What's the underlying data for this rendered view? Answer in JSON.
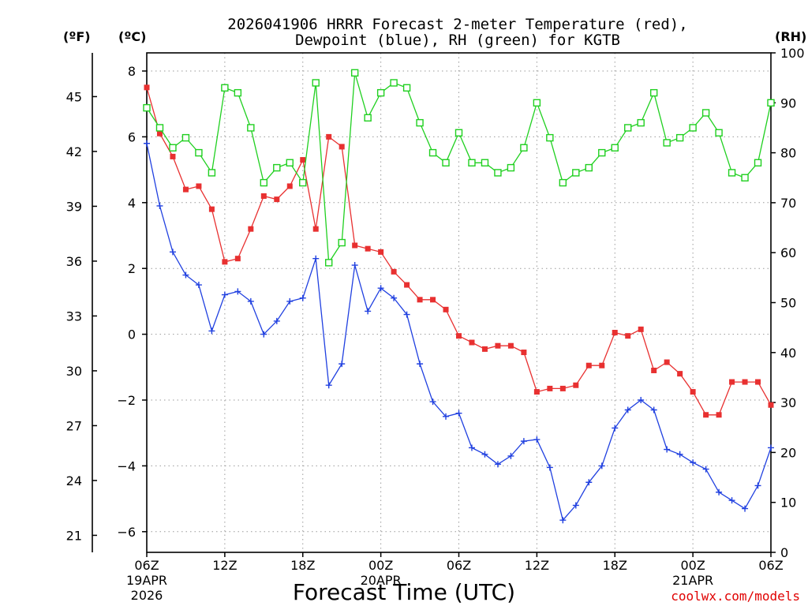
{
  "chart_data": {
    "type": "line",
    "title_line1": "2026041906 HRRR Forecast 2-meter Temperature (red),",
    "title_line2": "Dewpoint (blue), RH (green) for KGTB",
    "xlabel": "Forecast Time (UTC)",
    "credit": "coolwx.com/models",
    "units": {
      "fahrenheit": "(ºF)",
      "celsius": "(ºC)",
      "rh": "(RH)"
    },
    "y_celsius": {
      "range": [
        -6.6,
        8.0
      ],
      "ticks": [
        "8",
        "6",
        "4",
        "2",
        "0",
        "−2",
        "−4",
        "−6"
      ],
      "tick_values": [
        8,
        6,
        4,
        2,
        0,
        -2,
        -4,
        -6
      ]
    },
    "y_fahrenheit": {
      "ticks": [
        "45",
        "42",
        "39",
        "36",
        "33",
        "30",
        "27",
        "24",
        "21"
      ],
      "tick_values": [
        45,
        42,
        39,
        36,
        33,
        30,
        27,
        24,
        21
      ]
    },
    "y_rh": {
      "range": [
        0,
        100
      ],
      "ticks": [
        "100",
        "90",
        "80",
        "70",
        "60",
        "50",
        "40",
        "30",
        "20",
        "10",
        "0"
      ],
      "tick_values": [
        100,
        90,
        80,
        70,
        60,
        50,
        40,
        30,
        20,
        10,
        0
      ]
    },
    "x_hours_range": [
      0,
      48
    ],
    "x_ticks": [
      {
        "hour": 0,
        "lines": [
          "06Z",
          "19APR",
          "2026"
        ]
      },
      {
        "hour": 6,
        "lines": [
          "12Z"
        ]
      },
      {
        "hour": 12,
        "lines": [
          "18Z"
        ]
      },
      {
        "hour": 18,
        "lines": [
          "00Z",
          "20APR"
        ]
      },
      {
        "hour": 24,
        "lines": [
          "06Z"
        ]
      },
      {
        "hour": 30,
        "lines": [
          "12Z"
        ]
      },
      {
        "hour": 36,
        "lines": [
          "18Z"
        ]
      },
      {
        "hour": 42,
        "lines": [
          "00Z",
          "21APR"
        ]
      },
      {
        "hour": 48,
        "lines": [
          "06Z"
        ]
      }
    ],
    "grid": true,
    "series": [
      {
        "name": "Temperature",
        "axis": "celsius",
        "color": "#e83030",
        "marker": "filled-square",
        "values": [
          7.5,
          6.1,
          5.4,
          4.4,
          4.5,
          3.8,
          2.2,
          2.3,
          3.2,
          4.2,
          4.1,
          4.5,
          5.3,
          3.2,
          6.0,
          5.7,
          2.7,
          2.6,
          2.5,
          1.9,
          1.5,
          1.05,
          1.05,
          0.75,
          -0.05,
          -0.25,
          -0.45,
          -0.35,
          -0.35,
          -0.55,
          -1.75,
          -1.65,
          -1.65,
          -1.55,
          -0.95,
          -0.95,
          0.05,
          -0.05,
          0.15,
          -1.1,
          -0.85,
          -1.2,
          -1.75,
          -2.45,
          -2.45,
          -1.45,
          -1.45,
          -1.45,
          -2.15
        ]
      },
      {
        "name": "Dewpoint",
        "axis": "celsius",
        "color": "#2040e0",
        "marker": "plus",
        "values": [
          5.8,
          3.9,
          2.5,
          1.8,
          1.5,
          0.1,
          1.2,
          1.3,
          1.0,
          0.0,
          0.4,
          1.0,
          1.1,
          2.3,
          -1.55,
          -0.9,
          2.1,
          0.7,
          1.4,
          1.1,
          0.6,
          -0.9,
          -2.05,
          -2.5,
          -2.4,
          -3.45,
          -3.65,
          -3.95,
          -3.7,
          -3.25,
          -3.2,
          -4.05,
          -5.65,
          -5.2,
          -4.5,
          -4.0,
          -2.85,
          -2.3,
          -2.0,
          -2.3,
          -3.5,
          -3.65,
          -3.9,
          -4.1,
          -4.8,
          -5.05,
          -5.3,
          -4.6,
          -3.45
        ]
      },
      {
        "name": "RH",
        "axis": "rh",
        "color": "#20d020",
        "marker": "open-square",
        "values": [
          89,
          85,
          81,
          83,
          80,
          76,
          93,
          92,
          85,
          74,
          77,
          78,
          74,
          94,
          58,
          62,
          96,
          87,
          92,
          94,
          93,
          86,
          80,
          78,
          84,
          78,
          78,
          76,
          77,
          81,
          90,
          83,
          74,
          76,
          77,
          80,
          81,
          85,
          86,
          92,
          82,
          83,
          85,
          88,
          84,
          76,
          75,
          78,
          90
        ]
      }
    ]
  }
}
